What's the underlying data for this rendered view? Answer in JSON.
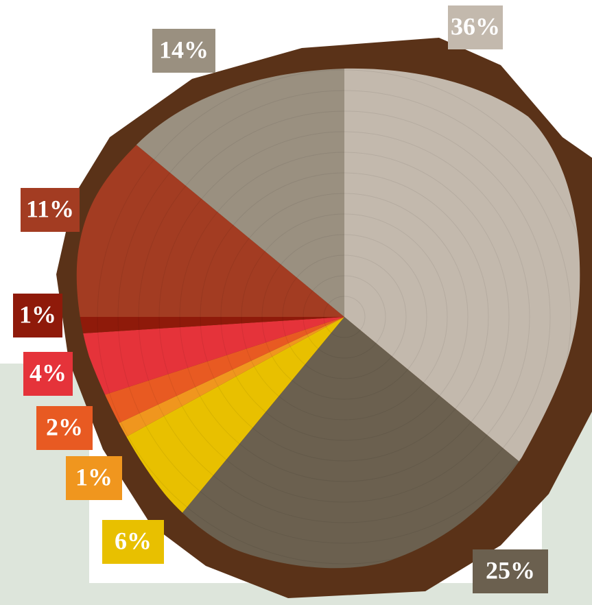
{
  "chart_data": {
    "type": "pie",
    "values": [
      36,
      25,
      6,
      1,
      2,
      4,
      1,
      11,
      14
    ],
    "value_labels": [
      "36%",
      "25%",
      "6%",
      "1%",
      "2%",
      "4%",
      "1%",
      "11%",
      "14%"
    ],
    "colors": [
      "#c3b9ad",
      "#6b604f",
      "#e8c000",
      "#f0961e",
      "#e85a22",
      "#e5333a",
      "#8f1a0a",
      "#a33c22",
      "#9a9080"
    ]
  }
}
